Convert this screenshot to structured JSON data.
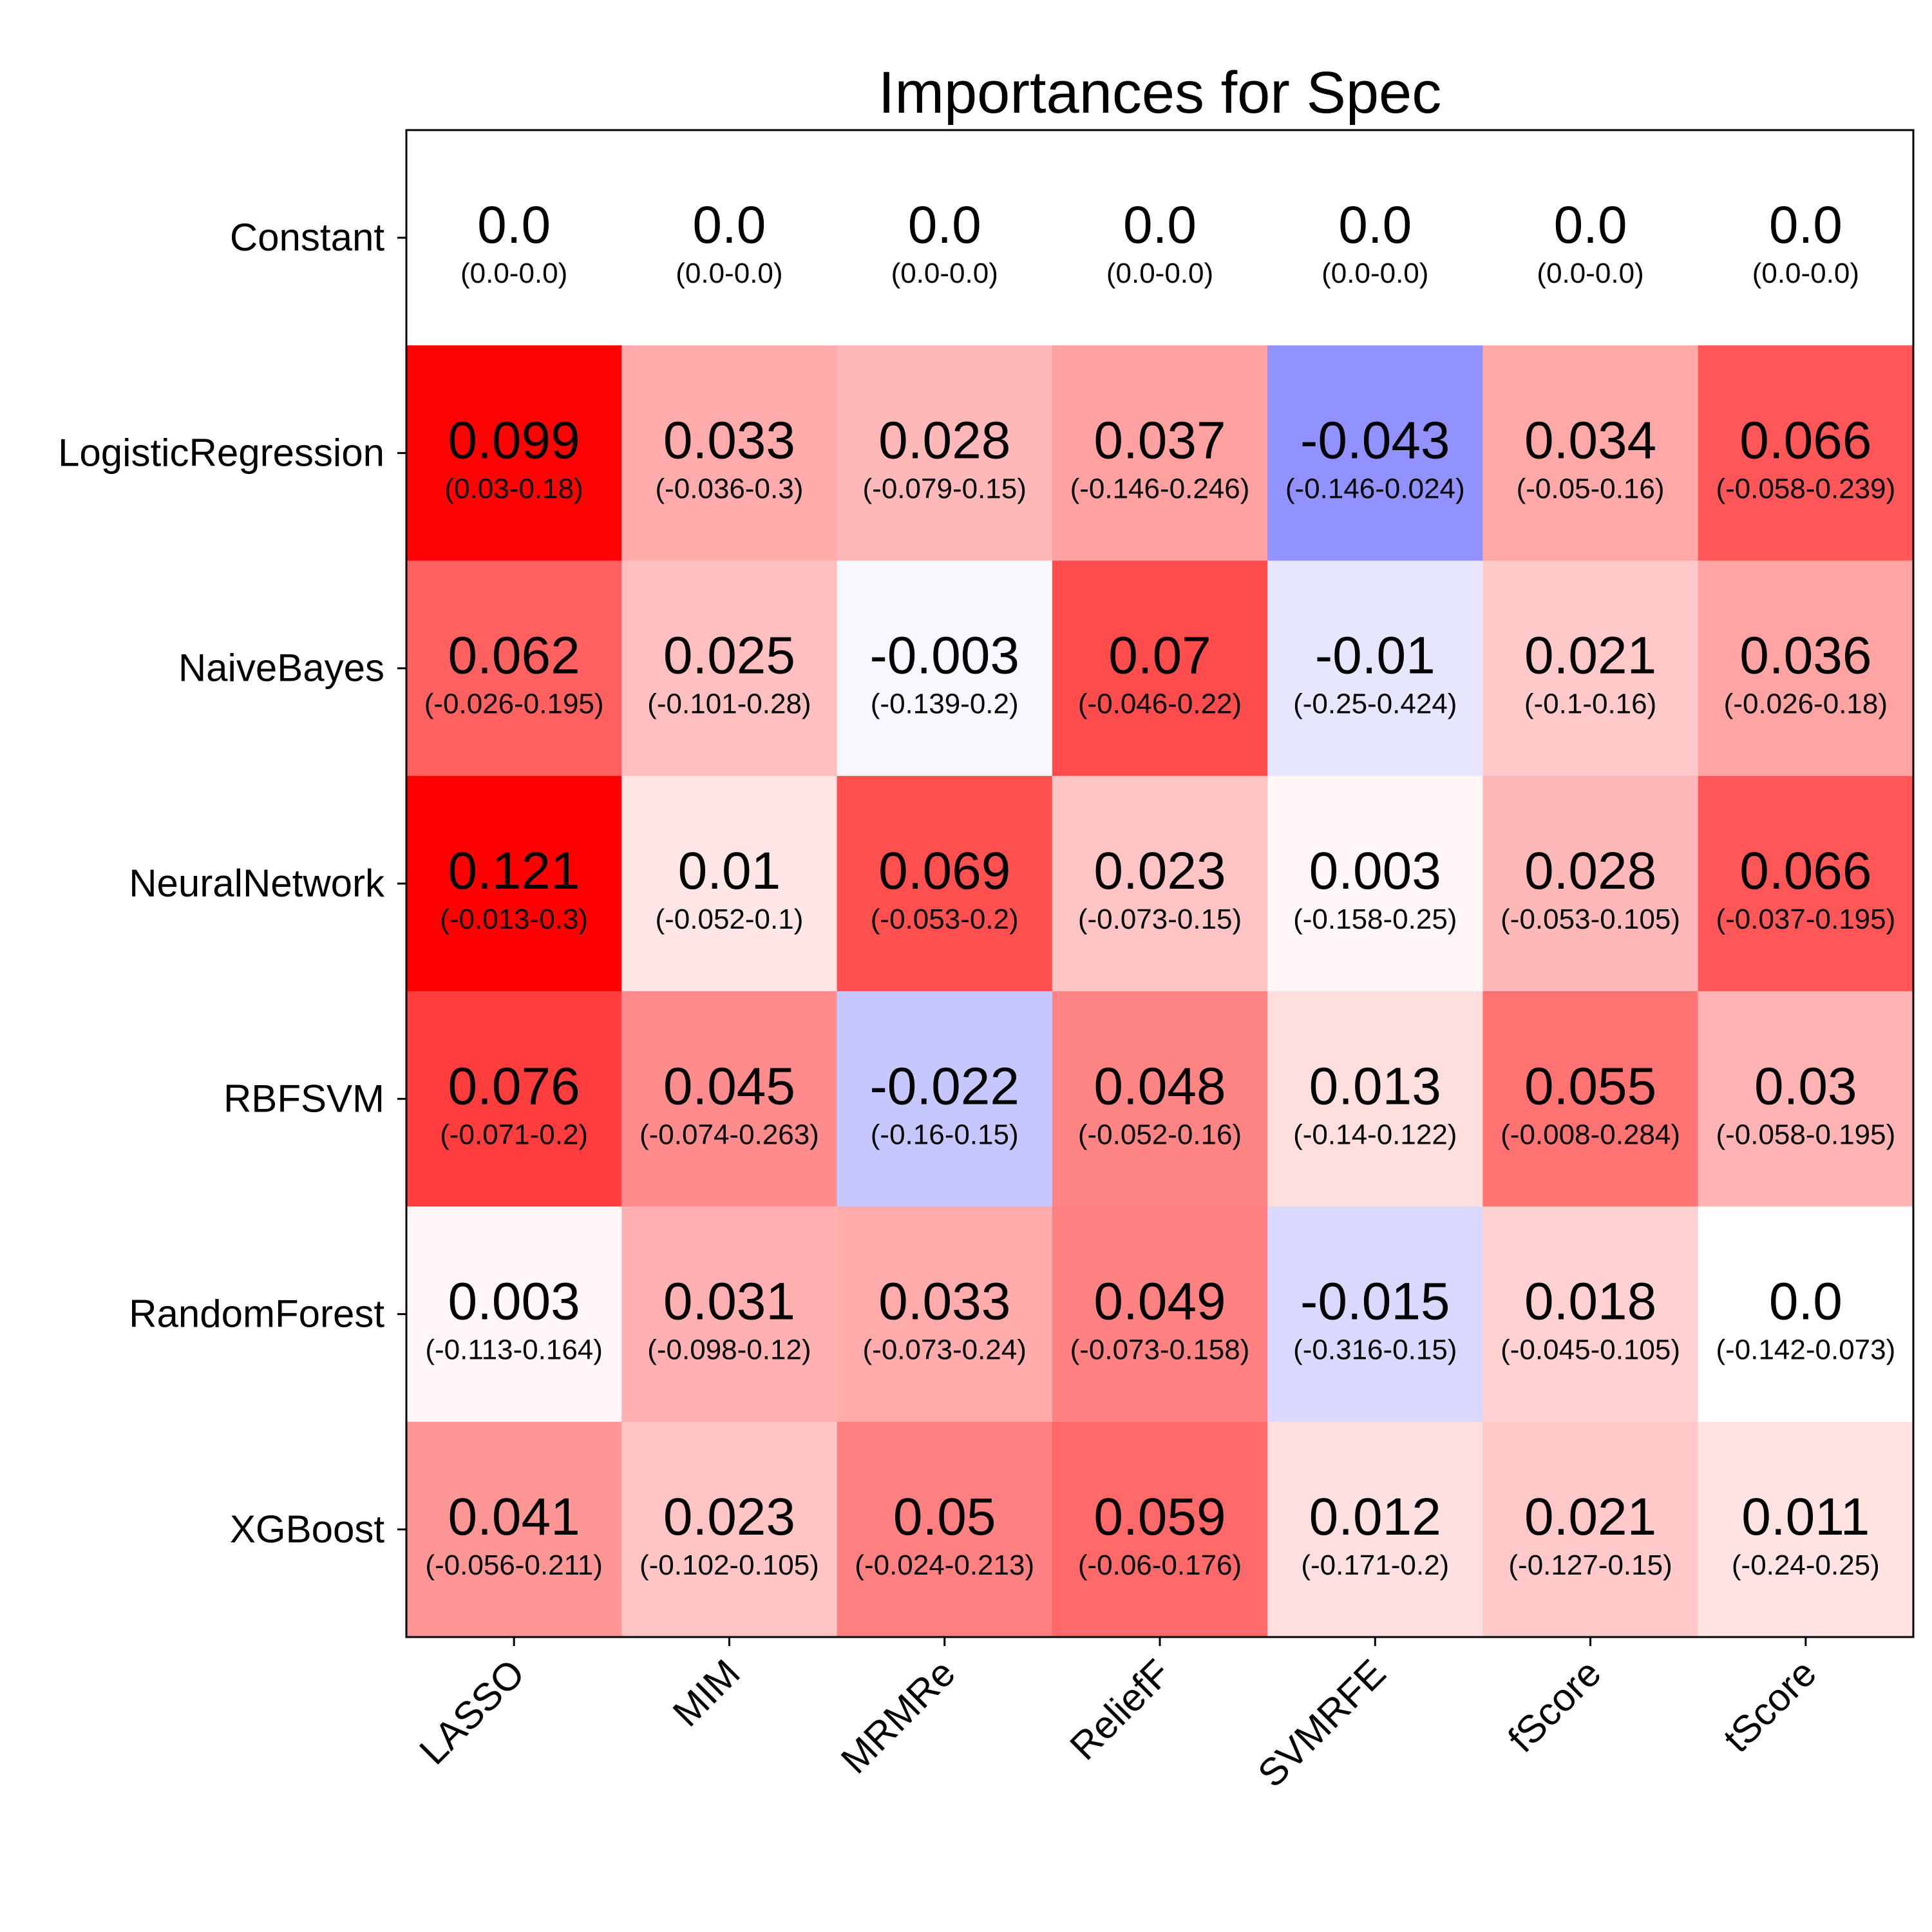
{
  "chart_data": {
    "type": "heatmap",
    "title": "Importances for Spec",
    "xlabel": "",
    "ylabel": "",
    "x_categories": [
      "LASSO",
      "MIM",
      "MRMRe",
      "ReliefF",
      "SVMRFE",
      "fScore",
      "tScore"
    ],
    "y_categories": [
      "Constant",
      "LogisticRegression",
      "NaiveBayes",
      "NeuralNetwork",
      "RBFSVM",
      "RandomForest",
      "XGBoost"
    ],
    "colormap": "bwr",
    "color_range": [
      -0.1,
      0.1
    ],
    "colors": {
      "positive": "#ff0000",
      "neutral": "#ffffff",
      "negative": "#0000ff"
    },
    "cells": [
      [
        {
          "value": 0.0,
          "value_label": "0.0",
          "interval": "(0.0-0.0)"
        },
        {
          "value": 0.0,
          "value_label": "0.0",
          "interval": "(0.0-0.0)"
        },
        {
          "value": 0.0,
          "value_label": "0.0",
          "interval": "(0.0-0.0)"
        },
        {
          "value": 0.0,
          "value_label": "0.0",
          "interval": "(0.0-0.0)"
        },
        {
          "value": 0.0,
          "value_label": "0.0",
          "interval": "(0.0-0.0)"
        },
        {
          "value": 0.0,
          "value_label": "0.0",
          "interval": "(0.0-0.0)"
        },
        {
          "value": 0.0,
          "value_label": "0.0",
          "interval": "(0.0-0.0)"
        }
      ],
      [
        {
          "value": 0.099,
          "value_label": "0.099",
          "interval": "(0.03-0.18)"
        },
        {
          "value": 0.033,
          "value_label": "0.033",
          "interval": "(-0.036-0.3)"
        },
        {
          "value": 0.028,
          "value_label": "0.028",
          "interval": "(-0.079-0.15)"
        },
        {
          "value": 0.037,
          "value_label": "0.037",
          "interval": "(-0.146-0.246)"
        },
        {
          "value": -0.043,
          "value_label": "-0.043",
          "interval": "(-0.146-0.024)"
        },
        {
          "value": 0.034,
          "value_label": "0.034",
          "interval": "(-0.05-0.16)"
        },
        {
          "value": 0.066,
          "value_label": "0.066",
          "interval": "(-0.058-0.239)"
        }
      ],
      [
        {
          "value": 0.062,
          "value_label": "0.062",
          "interval": "(-0.026-0.195)"
        },
        {
          "value": 0.025,
          "value_label": "0.025",
          "interval": "(-0.101-0.28)"
        },
        {
          "value": -0.003,
          "value_label": "-0.003",
          "interval": "(-0.139-0.2)"
        },
        {
          "value": 0.07,
          "value_label": "0.07",
          "interval": "(-0.046-0.22)"
        },
        {
          "value": -0.01,
          "value_label": "-0.01",
          "interval": "(-0.25-0.424)"
        },
        {
          "value": 0.021,
          "value_label": "0.021",
          "interval": "(-0.1-0.16)"
        },
        {
          "value": 0.036,
          "value_label": "0.036",
          "interval": "(-0.026-0.18)"
        }
      ],
      [
        {
          "value": 0.121,
          "value_label": "0.121",
          "interval": "(-0.013-0.3)"
        },
        {
          "value": 0.01,
          "value_label": "0.01",
          "interval": "(-0.052-0.1)"
        },
        {
          "value": 0.069,
          "value_label": "0.069",
          "interval": "(-0.053-0.2)"
        },
        {
          "value": 0.023,
          "value_label": "0.023",
          "interval": "(-0.073-0.15)"
        },
        {
          "value": 0.003,
          "value_label": "0.003",
          "interval": "(-0.158-0.25)"
        },
        {
          "value": 0.028,
          "value_label": "0.028",
          "interval": "(-0.053-0.105)"
        },
        {
          "value": 0.066,
          "value_label": "0.066",
          "interval": "(-0.037-0.195)"
        }
      ],
      [
        {
          "value": 0.076,
          "value_label": "0.076",
          "interval": "(-0.071-0.2)"
        },
        {
          "value": 0.045,
          "value_label": "0.045",
          "interval": "(-0.074-0.263)"
        },
        {
          "value": -0.022,
          "value_label": "-0.022",
          "interval": "(-0.16-0.15)"
        },
        {
          "value": 0.048,
          "value_label": "0.048",
          "interval": "(-0.052-0.16)"
        },
        {
          "value": 0.013,
          "value_label": "0.013",
          "interval": "(-0.14-0.122)"
        },
        {
          "value": 0.055,
          "value_label": "0.055",
          "interval": "(-0.008-0.284)"
        },
        {
          "value": 0.03,
          "value_label": "0.03",
          "interval": "(-0.058-0.195)"
        }
      ],
      [
        {
          "value": 0.003,
          "value_label": "0.003",
          "interval": "(-0.113-0.164)"
        },
        {
          "value": 0.031,
          "value_label": "0.031",
          "interval": "(-0.098-0.12)"
        },
        {
          "value": 0.033,
          "value_label": "0.033",
          "interval": "(-0.073-0.24)"
        },
        {
          "value": 0.049,
          "value_label": "0.049",
          "interval": "(-0.073-0.158)"
        },
        {
          "value": -0.015,
          "value_label": "-0.015",
          "interval": "(-0.316-0.15)"
        },
        {
          "value": 0.018,
          "value_label": "0.018",
          "interval": "(-0.045-0.105)"
        },
        {
          "value": 0.0,
          "value_label": "0.0",
          "interval": "(-0.142-0.073)"
        }
      ],
      [
        {
          "value": 0.041,
          "value_label": "0.041",
          "interval": "(-0.056-0.211)"
        },
        {
          "value": 0.023,
          "value_label": "0.023",
          "interval": "(-0.102-0.105)"
        },
        {
          "value": 0.05,
          "value_label": "0.05",
          "interval": "(-0.024-0.213)"
        },
        {
          "value": 0.059,
          "value_label": "0.059",
          "interval": "(-0.06-0.176)"
        },
        {
          "value": 0.012,
          "value_label": "0.012",
          "interval": "(-0.171-0.2)"
        },
        {
          "value": 0.021,
          "value_label": "0.021",
          "interval": "(-0.127-0.15)"
        },
        {
          "value": 0.011,
          "value_label": "0.011",
          "interval": "(-0.24-0.25)"
        }
      ]
    ],
    "grid": false,
    "legend": "none"
  }
}
